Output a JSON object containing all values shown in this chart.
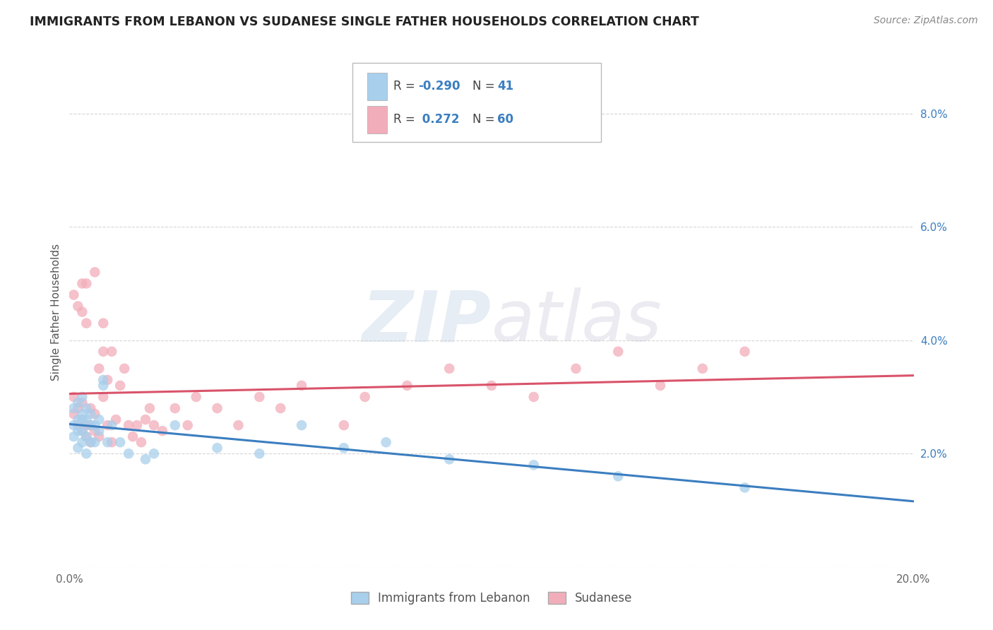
{
  "title": "IMMIGRANTS FROM LEBANON VS SUDANESE SINGLE FATHER HOUSEHOLDS CORRELATION CHART",
  "source": "Source: ZipAtlas.com",
  "ylabel": "Single Father Households",
  "xlim": [
    0.0,
    0.2
  ],
  "ylim": [
    0.0,
    0.09
  ],
  "xticks": [
    0.0,
    0.05,
    0.1,
    0.15,
    0.2
  ],
  "xticklabels": [
    "0.0%",
    "",
    "",
    "",
    "20.0%"
  ],
  "yticks": [
    0.0,
    0.02,
    0.04,
    0.06,
    0.08
  ],
  "yticklabels": [
    "",
    "2.0%",
    "4.0%",
    "6.0%",
    "8.0%"
  ],
  "legend_labels": [
    "Immigrants from Lebanon",
    "Sudanese"
  ],
  "blue_color": "#A8CFEC",
  "pink_color": "#F2ADBA",
  "blue_line_color": "#3B7EC0",
  "pink_line_color": "#D9536A",
  "R_blue": -0.29,
  "N_blue": 41,
  "R_pink": 0.272,
  "N_pink": 60,
  "blue_scatter_x": [
    0.001,
    0.001,
    0.001,
    0.002,
    0.002,
    0.002,
    0.002,
    0.003,
    0.003,
    0.003,
    0.003,
    0.003,
    0.004,
    0.004,
    0.004,
    0.004,
    0.005,
    0.005,
    0.005,
    0.006,
    0.006,
    0.007,
    0.007,
    0.008,
    0.008,
    0.009,
    0.01,
    0.012,
    0.014,
    0.018,
    0.02,
    0.025,
    0.035,
    0.045,
    0.055,
    0.065,
    0.075,
    0.09,
    0.11,
    0.13,
    0.16
  ],
  "blue_scatter_y": [
    0.023,
    0.025,
    0.028,
    0.021,
    0.024,
    0.026,
    0.029,
    0.022,
    0.024,
    0.026,
    0.027,
    0.03,
    0.02,
    0.023,
    0.026,
    0.028,
    0.022,
    0.025,
    0.027,
    0.022,
    0.025,
    0.024,
    0.026,
    0.032,
    0.033,
    0.022,
    0.025,
    0.022,
    0.02,
    0.019,
    0.02,
    0.025,
    0.021,
    0.02,
    0.025,
    0.021,
    0.022,
    0.019,
    0.018,
    0.016,
    0.014
  ],
  "pink_scatter_x": [
    0.001,
    0.001,
    0.002,
    0.002,
    0.003,
    0.003,
    0.003,
    0.003,
    0.004,
    0.004,
    0.004,
    0.005,
    0.005,
    0.005,
    0.006,
    0.006,
    0.006,
    0.007,
    0.007,
    0.008,
    0.008,
    0.008,
    0.009,
    0.009,
    0.01,
    0.01,
    0.011,
    0.012,
    0.013,
    0.014,
    0.015,
    0.016,
    0.017,
    0.018,
    0.019,
    0.02,
    0.022,
    0.025,
    0.028,
    0.03,
    0.035,
    0.04,
    0.045,
    0.05,
    0.055,
    0.065,
    0.07,
    0.08,
    0.09,
    0.1,
    0.11,
    0.12,
    0.13,
    0.14,
    0.15,
    0.16,
    0.001,
    0.002,
    0.003,
    0.004
  ],
  "pink_scatter_y": [
    0.027,
    0.03,
    0.025,
    0.028,
    0.024,
    0.026,
    0.029,
    0.05,
    0.023,
    0.025,
    0.05,
    0.022,
    0.025,
    0.028,
    0.024,
    0.027,
    0.052,
    0.023,
    0.035,
    0.03,
    0.038,
    0.043,
    0.025,
    0.033,
    0.022,
    0.038,
    0.026,
    0.032,
    0.035,
    0.025,
    0.023,
    0.025,
    0.022,
    0.026,
    0.028,
    0.025,
    0.024,
    0.028,
    0.025,
    0.03,
    0.028,
    0.025,
    0.03,
    0.028,
    0.032,
    0.025,
    0.03,
    0.032,
    0.035,
    0.032,
    0.03,
    0.035,
    0.038,
    0.032,
    0.035,
    0.038,
    0.048,
    0.046,
    0.045,
    0.043
  ],
  "watermark_zip": "ZIP",
  "watermark_atlas": "atlas",
  "background_color": "#FFFFFF",
  "grid_color": "#CCCCCC"
}
